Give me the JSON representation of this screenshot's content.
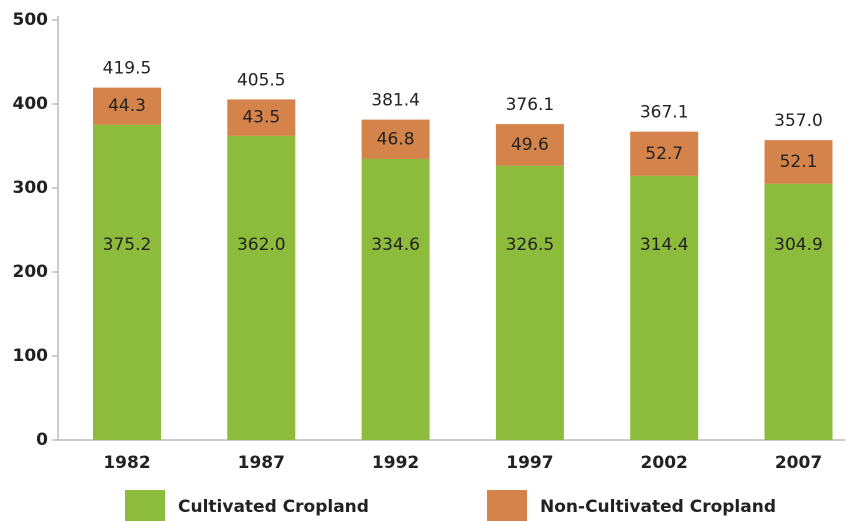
{
  "chart_data": {
    "type": "stacked_bar",
    "categories": [
      "1982",
      "1987",
      "1992",
      "1997",
      "2002",
      "2007"
    ],
    "series": [
      {
        "name": "Cultivated Cropland",
        "color": "#8dbb3c",
        "values": [
          375.2,
          362.0,
          334.6,
          326.5,
          314.4,
          304.9
        ],
        "value_labels": [
          "375.2",
          "362.0",
          "334.6",
          "326.5",
          "314.4",
          "304.9"
        ]
      },
      {
        "name": "Non-Cultivated Cropland",
        "color": "#d4844a",
        "values": [
          44.3,
          43.5,
          46.8,
          49.6,
          52.7,
          52.1
        ],
        "value_labels": [
          "44.3",
          "43.5",
          "46.8",
          "49.6",
          "52.7",
          "52.1"
        ]
      }
    ],
    "total_labels": [
      "419.5",
      "405.5",
      "381.4",
      "376.1",
      "367.1",
      "357.0"
    ],
    "ylim": [
      0,
      500
    ],
    "yticks": [
      0,
      100,
      200,
      300,
      400,
      500
    ]
  }
}
